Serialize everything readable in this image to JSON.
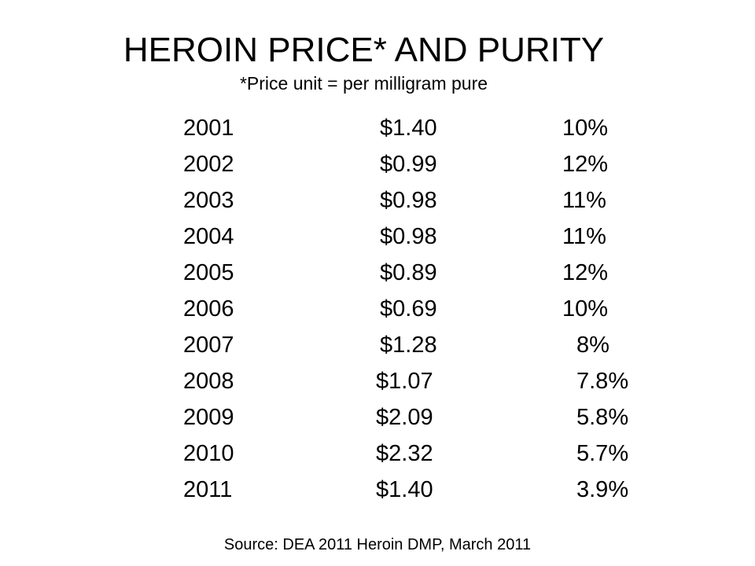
{
  "slide": {
    "title": "HEROIN PRICE* AND PURITY",
    "subtitle": "*Price unit = per milligram pure",
    "rows": [
      {
        "year": "2001",
        "price": "$1.40",
        "purity": "10%"
      },
      {
        "year": "2002",
        "price": "$0.99",
        "purity": "12%"
      },
      {
        "year": "2003",
        "price": "$0.98",
        "purity": "11%"
      },
      {
        "year": "2004",
        "price": "$0.98",
        "purity": "11%"
      },
      {
        "year": "2005",
        "price": "$0.89",
        "purity": "12%"
      },
      {
        "year": "2006",
        "price": "$0.69",
        "purity": "10%"
      },
      {
        "year": "2007",
        "price": "$1.28",
        "purity": "8%"
      },
      {
        "year": "2008",
        "price": "$1.07",
        "purity": "7.8%"
      },
      {
        "year": "2009",
        "price": "$2.09",
        "purity": "5.8%"
      },
      {
        "year": "2010",
        "price": "$2.32",
        "purity": "5.7%"
      },
      {
        "year": "2011",
        "price": "$1.40",
        "purity": "3.9%"
      }
    ],
    "source": "Source: DEA 2011 Heroin DMP, March 2011"
  }
}
